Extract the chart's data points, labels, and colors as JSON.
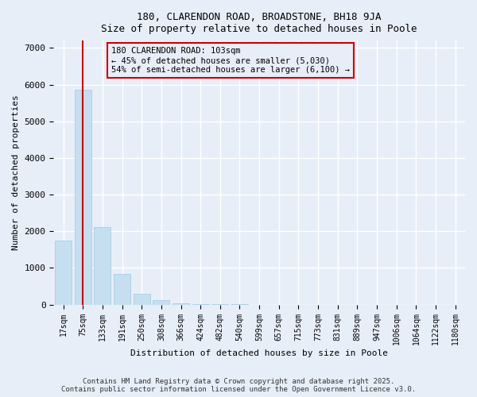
{
  "title1": "180, CLARENDON ROAD, BROADSTONE, BH18 9JA",
  "title2": "Size of property relative to detached houses in Poole",
  "xlabel": "Distribution of detached houses by size in Poole",
  "ylabel": "Number of detached properties",
  "bar_color": "#c5dff0",
  "bar_edge_color": "#a0c8e0",
  "annotation_box_color": "#cc0000",
  "vline_color": "#cc0000",
  "background_color": "#e8eef8",
  "grid_color": "#ffffff",
  "categories": [
    "17sqm",
    "75sqm",
    "133sqm",
    "191sqm",
    "250sqm",
    "308sqm",
    "366sqm",
    "424sqm",
    "482sqm",
    "540sqm",
    "599sqm",
    "657sqm",
    "715sqm",
    "773sqm",
    "831sqm",
    "889sqm",
    "947sqm",
    "1006sqm",
    "1064sqm",
    "1122sqm",
    "1180sqm"
  ],
  "values": [
    1750,
    5870,
    2110,
    840,
    290,
    115,
    45,
    18,
    8,
    4,
    2,
    1,
    1,
    0,
    0,
    0,
    0,
    0,
    0,
    0,
    0
  ],
  "property_label": "180 CLARENDON ROAD: 103sqm",
  "annotation_line1": "← 45% of detached houses are smaller (5,030)",
  "annotation_line2": "54% of semi-detached houses are larger (6,100) →",
  "vline_bar_index": 1,
  "ylim": [
    0,
    7200
  ],
  "yticks": [
    0,
    1000,
    2000,
    3000,
    4000,
    5000,
    6000,
    7000
  ],
  "footer_line1": "Contains HM Land Registry data © Crown copyright and database right 2025.",
  "footer_line2": "Contains public sector information licensed under the Open Government Licence v3.0."
}
